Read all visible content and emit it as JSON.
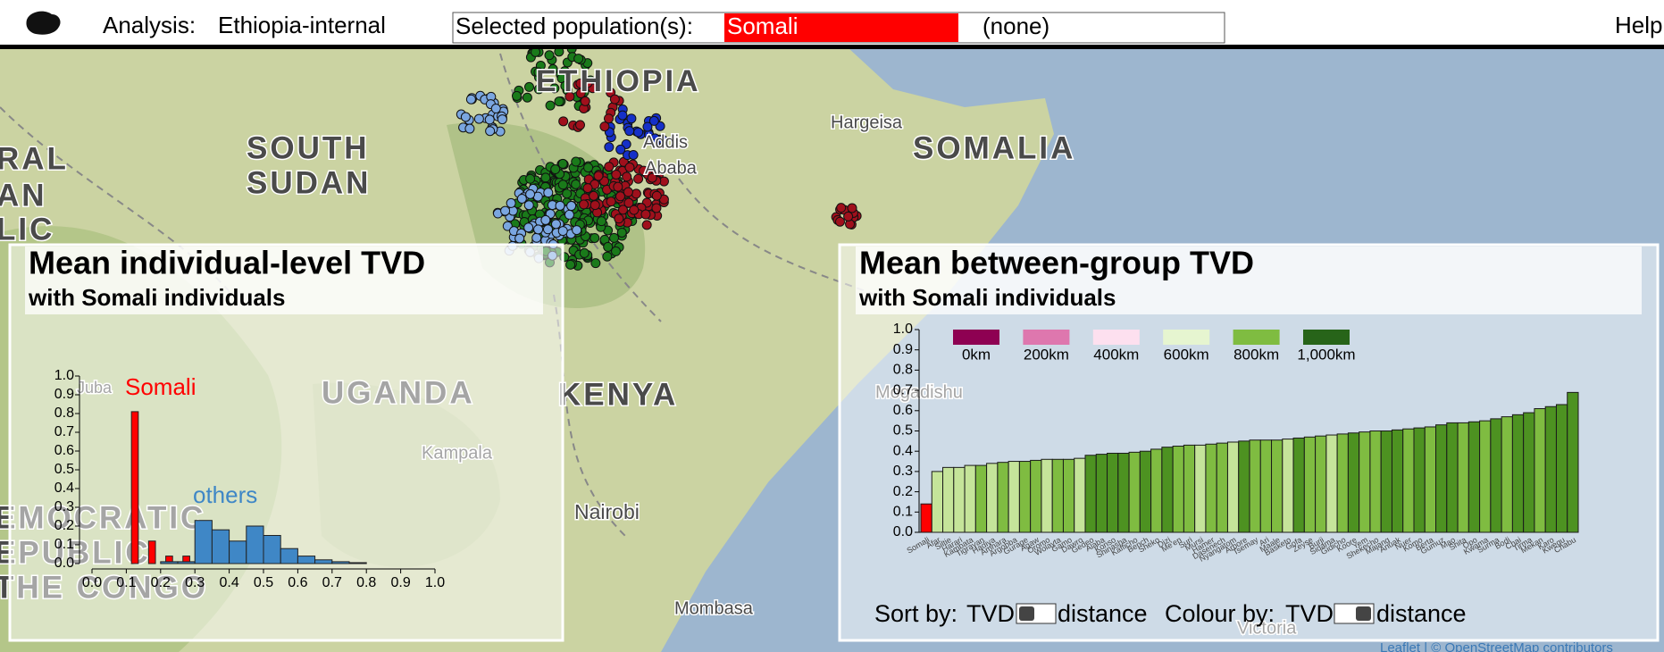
{
  "header": {
    "analysis_label": "Analysis:",
    "analysis": "Ethiopia-internal",
    "selected_label": "Selected population(s):",
    "selected": "Somali",
    "none": "(none)",
    "help": "Help"
  },
  "map": {
    "labels": [
      "ETHIOPIA",
      "Addis",
      "Ababa",
      "Hargeisa",
      "SOMALIA",
      "SOUTH",
      "SUDAN",
      "RAL",
      "AN",
      "LIC",
      "UGANDA",
      "KENYA",
      "Kampala",
      "Nairobi",
      "Mombasa",
      "Mogadishu",
      "Victoria",
      "Juba",
      "EMOCRATIC",
      "EPUBLIC",
      "THE CONGO"
    ]
  },
  "chart_data": [
    {
      "type": "histogram",
      "title": "Mean individual-level TVD",
      "subtitle": "with Somali individuals",
      "bins": [
        0,
        0.05,
        0.1,
        0.15,
        0.2,
        0.25,
        0.3,
        0.35,
        0.4,
        0.45,
        0.5,
        0.55,
        0.6,
        0.65,
        0.7,
        0.75,
        0.8,
        0.85,
        0.9,
        0.95,
        1.0
      ],
      "series": [
        {
          "name": "Somali",
          "color": "#ff0000",
          "values": [
            0,
            0,
            0.81,
            0.12,
            0.04,
            0.04,
            0,
            0,
            0,
            0,
            0,
            0,
            0,
            0,
            0,
            0,
            0,
            0,
            0,
            0
          ]
        },
        {
          "name": "others",
          "color": "#3f87c6",
          "values": [
            0,
            0,
            0,
            0,
            0.01,
            0.01,
            0.23,
            0.18,
            0.12,
            0.2,
            0.15,
            0.08,
            0.04,
            0.02,
            0.01,
            0.005,
            0,
            0,
            0,
            0
          ]
        }
      ],
      "xlim": [
        0,
        1
      ],
      "xticks": [
        {
          "value": 0,
          "label": "0.0"
        },
        0.1,
        0.2,
        0.3,
        0.4,
        0.5,
        0.6,
        0.7,
        0.8,
        0.9,
        {
          "value": 1,
          "label": "1.0"
        }
      ],
      "ylim": [
        0,
        1
      ],
      "yticks": [
        {
          "value": 0,
          "label": "0.0"
        },
        0.1,
        0.2,
        0.3,
        0.4,
        0.5,
        0.6,
        0.7,
        0.8,
        0.9,
        {
          "value": 1,
          "label": "1.0"
        }
      ]
    },
    {
      "type": "bar",
      "title": "Mean between-group TVD",
      "subtitle": "with Somali individuals",
      "legend": [
        {
          "label": "0km",
          "color": "#8e0152"
        },
        {
          "label": "200km",
          "color": "#de77ae"
        },
        {
          "label": "400km",
          "color": "#fde0ef"
        },
        {
          "label": "600km",
          "color": "#e6f5d0"
        },
        {
          "label": "800km",
          "color": "#7fbc41"
        },
        {
          "label": "1,000km",
          "color": "#276419"
        }
      ],
      "categories": [
        "Somali",
        "Afar",
        "Siltie",
        "Harari",
        "Kambata",
        "Tigrayan",
        "Hadiya",
        "Amhara",
        "Argobba",
        "Gurage",
        "Agaw",
        "Oromo",
        "Wolayta",
        "Gamo",
        "Dawro",
        "Gedeo",
        "Alaba",
        "Konso",
        "Shinasha",
        "Kafficho",
        "Bench",
        "Sheko",
        "Dizi",
        "Me'en",
        "Suri",
        "Mursi",
        "Hamer",
        "Dasenech",
        "Nyangatom",
        "Arbore",
        "Tsemay",
        "Ari",
        "Maale",
        "Basketo",
        "Gofa",
        "Zeyse",
        "Burji",
        "Sidama",
        "Gidicho",
        "Koore",
        "Yem",
        "Shekecho",
        "Majang",
        "Anuak",
        "Nuer",
        "Komo",
        "Berta",
        "Gumuz",
        "Mao",
        "Shita",
        "Opo",
        "Kwama",
        "Surma",
        "Bodi",
        "Chai",
        "Tirma",
        "Mekan",
        "Karo",
        "Kwegu",
        "Chabu"
      ],
      "values": [
        0.14,
        0.3,
        0.32,
        0.32,
        0.33,
        0.33,
        0.34,
        0.345,
        0.35,
        0.35,
        0.355,
        0.36,
        0.36,
        0.36,
        0.365,
        0.38,
        0.385,
        0.39,
        0.39,
        0.395,
        0.4,
        0.41,
        0.42,
        0.425,
        0.43,
        0.43,
        0.435,
        0.44,
        0.445,
        0.45,
        0.455,
        0.455,
        0.455,
        0.46,
        0.465,
        0.47,
        0.475,
        0.48,
        0.485,
        0.49,
        0.495,
        0.5,
        0.5,
        0.505,
        0.51,
        0.515,
        0.52,
        0.53,
        0.54,
        0.54,
        0.545,
        0.55,
        0.56,
        0.57,
        0.58,
        0.59,
        0.61,
        0.62,
        0.63,
        0.69
      ],
      "colors": [
        "#ff0000",
        "#c5e49a",
        "#c5e49a",
        "#c5e49a",
        "#c5e49a",
        "#7fbc41",
        "#c5e49a",
        "#7fbc41",
        "#c5e49a",
        "#7fbc41",
        "#7fbc41",
        "#c5e49a",
        "#7fbc41",
        "#7fbc41",
        "#c5e49a",
        "#4d9221",
        "#4d9221",
        "#4d9221",
        "#4d9221",
        "#7fbc41",
        "#4d9221",
        "#7fbc41",
        "#4d9221",
        "#7fbc41",
        "#7fbc41",
        "#c5e49a",
        "#7fbc41",
        "#7fbc41",
        "#c5e49a",
        "#4d9221",
        "#7fbc41",
        "#7fbc41",
        "#7fbc41",
        "#c5e49a",
        "#4d9221",
        "#7fbc41",
        "#7fbc41",
        "#c5e49a",
        "#7fbc41",
        "#4d9221",
        "#7fbc41",
        "#7fbc41",
        "#4d9221",
        "#4d9221",
        "#7fbc41",
        "#4d9221",
        "#7fbc41",
        "#4d9221",
        "#4d9221",
        "#7fbc41",
        "#4d9221",
        "#7fbc41",
        "#4d9221",
        "#7fbc41",
        "#4d9221",
        "#4d9221",
        "#7fbc41",
        "#4d9221",
        "#4d9221",
        "#4d9221"
      ],
      "ylim": [
        0,
        1
      ],
      "yticks": [
        {
          "value": 0,
          "label": "0.0"
        },
        0.1,
        0.2,
        0.3,
        0.4,
        0.5,
        0.6,
        0.7,
        0.8,
        0.9,
        {
          "value": 1,
          "label": "1.0"
        }
      ]
    }
  ],
  "controls": {
    "sort_label": "Sort by:",
    "sort_a": "TVD",
    "sort_b": "distance",
    "colour_label": "Colour by:",
    "colour_a": "TVD",
    "colour_b": "distance"
  },
  "attribution": "Leaflet | © OpenStreetMap contributors"
}
